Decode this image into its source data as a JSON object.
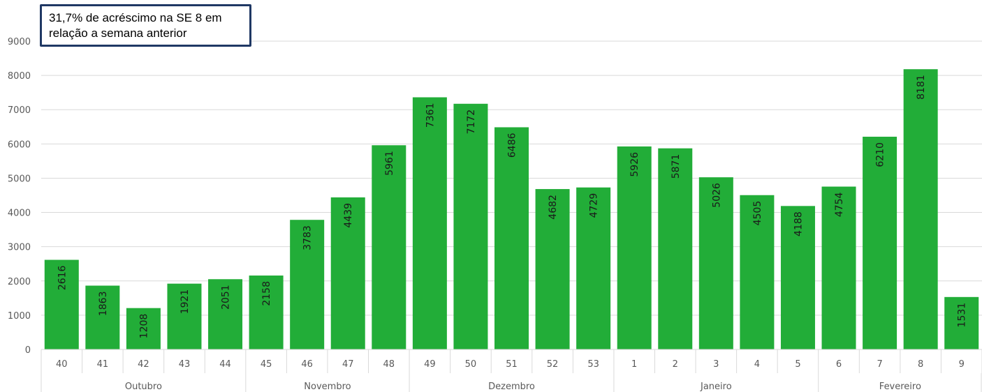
{
  "chart_data": {
    "type": "bar",
    "title": "",
    "xlabel": "",
    "ylabel": "",
    "ylim": [
      0,
      9000
    ],
    "yticks": [
      0,
      1000,
      2000,
      3000,
      4000,
      5000,
      6000,
      7000,
      8000,
      9000
    ],
    "grid": true,
    "bar_color": "#22ad38",
    "categories": [
      "40",
      "41",
      "42",
      "43",
      "44",
      "45",
      "46",
      "47",
      "48",
      "49",
      "50",
      "51",
      "52",
      "53",
      "1",
      "2",
      "3",
      "4",
      "5",
      "6",
      "7",
      "8",
      "9"
    ],
    "values": [
      2616,
      1863,
      1208,
      1921,
      2051,
      2158,
      3783,
      4439,
      5961,
      7361,
      7172,
      6486,
      4682,
      4729,
      5926,
      5871,
      5026,
      4505,
      4188,
      4754,
      6210,
      8181,
      1531
    ],
    "groups": [
      {
        "label": "Outubro",
        "count": 5
      },
      {
        "label": "Novembro",
        "count": 4
      },
      {
        "label": "Dezembro",
        "count": 5
      },
      {
        "label": "Janeiro",
        "count": 5
      },
      {
        "label": "Fevereiro",
        "count": 4
      }
    ]
  },
  "annotation": {
    "line1": "31,7% de acréscimo na SE 8 em",
    "line2": "relação a semana anterior"
  }
}
